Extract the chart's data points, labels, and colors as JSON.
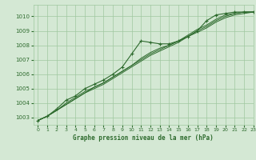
{
  "title": "Graphe pression niveau de la mer (hPa)",
  "xlim": [
    -0.5,
    23
  ],
  "ylim": [
    1002.5,
    1010.8
  ],
  "yticks": [
    1003,
    1004,
    1005,
    1006,
    1007,
    1008,
    1009,
    1010
  ],
  "xticks": [
    0,
    1,
    2,
    3,
    4,
    5,
    6,
    7,
    8,
    9,
    10,
    11,
    12,
    13,
    14,
    15,
    16,
    17,
    18,
    19,
    20,
    21,
    22,
    23
  ],
  "background_color": "#d4e8d4",
  "grid_color": "#a0c8a0",
  "line_color": "#2d6a2d",
  "marker_color": "#2d6a2d",
  "series": [
    [
      1002.8,
      1003.1,
      1003.6,
      1004.2,
      1004.5,
      1005.0,
      1005.3,
      1005.6,
      1006.0,
      1006.5,
      1007.4,
      1008.3,
      1008.2,
      1008.1,
      1008.1,
      1008.3,
      1008.6,
      1009.0,
      1009.7,
      1010.1,
      1010.2,
      1010.3,
      1010.3,
      1010.3
    ],
    [
      1002.8,
      1003.1,
      1003.5,
      1003.9,
      1004.3,
      1004.7,
      1005.1,
      1005.4,
      1005.8,
      1006.2,
      1006.6,
      1007.0,
      1007.4,
      1007.7,
      1008.0,
      1008.3,
      1008.6,
      1008.9,
      1009.2,
      1009.6,
      1009.9,
      1010.1,
      1010.2,
      1010.3
    ],
    [
      1002.8,
      1003.1,
      1003.5,
      1003.9,
      1004.3,
      1004.7,
      1005.0,
      1005.3,
      1005.7,
      1006.1,
      1006.5,
      1006.9,
      1007.3,
      1007.6,
      1007.9,
      1008.2,
      1008.6,
      1009.0,
      1009.3,
      1009.7,
      1010.0,
      1010.2,
      1010.3,
      1010.3
    ],
    [
      1002.8,
      1003.1,
      1003.5,
      1004.0,
      1004.4,
      1004.8,
      1005.1,
      1005.4,
      1005.8,
      1006.2,
      1006.6,
      1007.1,
      1007.5,
      1007.8,
      1008.0,
      1008.3,
      1008.7,
      1009.1,
      1009.4,
      1009.8,
      1010.1,
      1010.2,
      1010.3,
      1010.3
    ]
  ],
  "marker_series": 0,
  "figsize": [
    3.2,
    2.0
  ],
  "dpi": 100
}
